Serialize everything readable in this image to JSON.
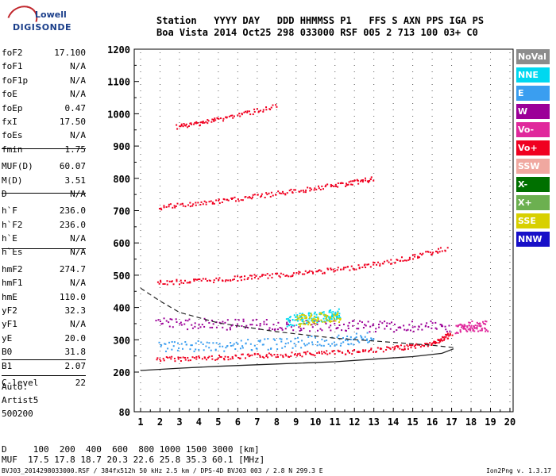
{
  "logo": {
    "line1": "Lowell",
    "line2": "DIGISONDE"
  },
  "header": {
    "labels": [
      "Station",
      "YYYY",
      "DAY",
      "DDD",
      "HHMMSS",
      "P1",
      "FFS",
      "S",
      "AXN",
      "PPS",
      "IGA",
      "PS"
    ],
    "values": [
      "Boa Vista",
      "2014",
      "Oct25",
      "298",
      "033000",
      "RSF",
      "005",
      "2",
      "713",
      "100",
      "03+",
      "C0"
    ]
  },
  "params": [
    {
      "name": "foF2",
      "value": "17.100"
    },
    {
      "name": "foF1",
      "value": "N/A"
    },
    {
      "name": "foF1p",
      "value": "N/A"
    },
    {
      "name": "foE",
      "value": "N/A"
    },
    {
      "name": "foEp",
      "value": "0.47"
    },
    {
      "name": "fxI",
      "value": "17.50"
    },
    {
      "name": "foEs",
      "value": "N/A"
    },
    {
      "name": "fmin",
      "value": "1.75"
    },
    {
      "name": "MUF(D)",
      "value": "60.07"
    },
    {
      "name": "M(D)",
      "value": "3.51"
    },
    {
      "name": "D",
      "value": "N/A"
    },
    {
      "name": "h`F",
      "value": "236.0"
    },
    {
      "name": "h`F2",
      "value": "236.0"
    },
    {
      "name": "h`E",
      "value": "N/A"
    },
    {
      "name": "h`Es",
      "value": "N/A"
    },
    {
      "name": "hmF2",
      "value": "274.7"
    },
    {
      "name": "hmF1",
      "value": "N/A"
    },
    {
      "name": "hmE",
      "value": "110.0"
    },
    {
      "name": "yF2",
      "value": "32.3"
    },
    {
      "name": "yF1",
      "value": "N/A"
    },
    {
      "name": "yE",
      "value": "20.0"
    },
    {
      "name": "B0",
      "value": "31.8"
    },
    {
      "name": "B1",
      "value": "2.07"
    },
    {
      "name": "C-level",
      "value": "22"
    }
  ],
  "auto": {
    "line1": "Auto:",
    "line2": "Artist5",
    "line3": "500200"
  },
  "legend": [
    {
      "label": "NoVal",
      "color": "#8c8c8c"
    },
    {
      "label": "NNE",
      "color": "#00d8f0"
    },
    {
      "label": "E",
      "color": "#3a9ef0"
    },
    {
      "label": "W",
      "color": "#9c0098"
    },
    {
      "label": "Vo-",
      "color": "#e0289c"
    },
    {
      "label": "Vo+",
      "color": "#f00020"
    },
    {
      "label": "SSW",
      "color": "#f0a8a0"
    },
    {
      "label": "X-",
      "color": "#007000"
    },
    {
      "label": "X+",
      "color": "#6cb050"
    },
    {
      "label": "SSE",
      "color": "#d8d000"
    },
    {
      "label": "NNW",
      "color": "#1810c8"
    }
  ],
  "bottom": {
    "d_label": "D",
    "d_values": [
      "100",
      "200",
      "400",
      "600",
      "800",
      "1000",
      "1500",
      "3000"
    ],
    "d_unit": "[km]",
    "muf_label": "MUF",
    "muf_values": [
      "17.5",
      "17.8",
      "18.7",
      "20.3",
      "22.6",
      "25.8",
      "35.3",
      "60.1"
    ],
    "muf_unit": "[MHz]"
  },
  "footer": {
    "left": "BVJ03_2014298033000.RSF / 384fx512h 50 kHz 2.5 km / DPS-4D BVJ03 003 / 2.8 N 299.3 E",
    "right": "Ion2Png v. 1.3.17"
  },
  "chart_data": {
    "type": "scatter",
    "x_ticks": [
      1,
      2,
      3,
      4,
      5,
      6,
      7,
      8,
      9,
      10,
      11,
      12,
      13,
      14,
      15,
      16,
      17,
      18,
      19,
      20
    ],
    "xlim": [
      0.5,
      20
    ],
    "y_ticks": [
      80,
      200,
      300,
      400,
      500,
      600,
      700,
      800,
      900,
      1000,
      1100,
      1200
    ],
    "ylim": [
      80,
      1220
    ],
    "y_axis_note": "nonlinear: 80 to 200 compressed",
    "traces": [
      {
        "name": "o-trace",
        "color": "#f00020",
        "x": [
          1.8,
          5,
          8,
          11,
          14,
          16,
          17.0
        ],
        "y": [
          242,
          247,
          255,
          262,
          275,
          290,
          320
        ]
      },
      {
        "name": "o-trace-2hop",
        "color": "#f00020",
        "x": [
          1.8,
          5,
          8,
          11,
          14,
          16.8
        ],
        "y": [
          478,
          488,
          502,
          518,
          545,
          585
        ]
      },
      {
        "name": "o-trace-3hop",
        "color": "#f00020",
        "x": [
          1.9,
          5,
          8,
          11,
          13
        ],
        "y": [
          712,
          730,
          755,
          780,
          800
        ]
      },
      {
        "name": "o-trace-4hop",
        "color": "#f00020",
        "x": [
          2.8,
          5,
          8
        ],
        "y": [
          960,
          985,
          1025
        ]
      },
      {
        "name": "W-spread",
        "color": "#9c0098",
        "x": [
          1.8,
          5,
          8,
          11,
          14,
          17
        ],
        "y": [
          352,
          350,
          348,
          345,
          343,
          342
        ]
      },
      {
        "name": "E-spread",
        "color": "#3a9ef0",
        "x": [
          1.9,
          5,
          8,
          11,
          13
        ],
        "y": [
          278,
          283,
          290,
          300,
          310
        ]
      },
      {
        "name": "NNE-spread",
        "color": "#00d8f0",
        "x": [
          8.5,
          9.5,
          10.5,
          11.3
        ],
        "y": [
          360,
          370,
          375,
          385
        ]
      },
      {
        "name": "SSE-spread",
        "color": "#d8d000",
        "x": [
          9,
          10,
          11.3
        ],
        "y": [
          360,
          368,
          375
        ]
      },
      {
        "name": "Vo-cluster",
        "color": "#e0289c",
        "x": [
          17.2,
          18.0,
          18.8
        ],
        "y": [
          330,
          345,
          345
        ]
      }
    ],
    "profile": {
      "x": [
        1.0,
        3,
        5,
        8,
        11,
        13,
        15,
        16.5,
        17.1
      ],
      "y": [
        205,
        212,
        218,
        225,
        232,
        240,
        248,
        258,
        272
      ]
    },
    "profile_dashed": {
      "x": [
        1.0,
        2,
        3,
        5,
        8,
        11,
        14,
        16,
        17.1
      ],
      "y": [
        460,
        420,
        385,
        352,
        325,
        305,
        292,
        283,
        276
      ]
    }
  }
}
